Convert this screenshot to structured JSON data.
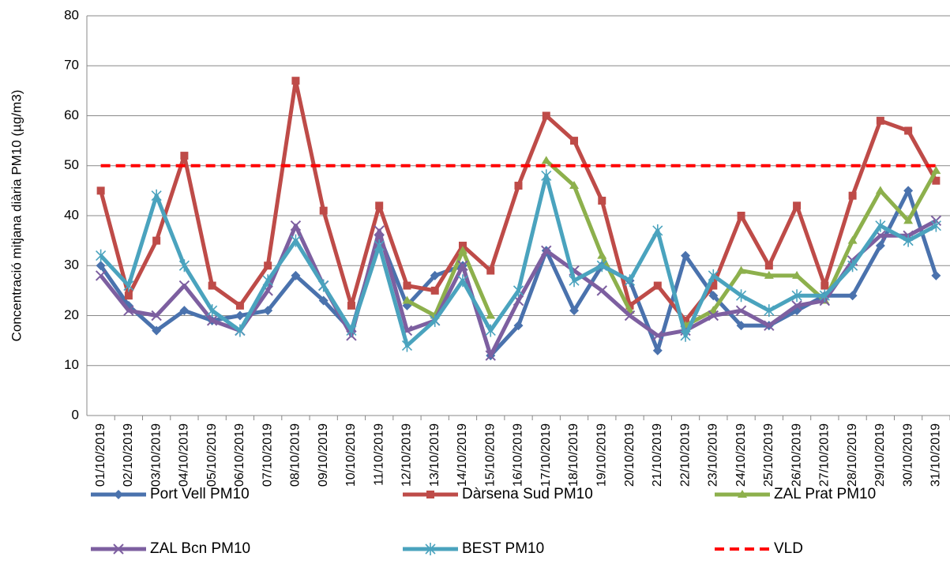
{
  "chart_data": {
    "type": "line",
    "y_label": "Concentració mitjana diària PM10 (µg/m3)",
    "categories": [
      "01/10/2019",
      "02/10/2019",
      "03/10/2019",
      "04/10/2019",
      "05/10/2019",
      "06/10/2019",
      "07/10/2019",
      "08/10/2019",
      "09/10/2019",
      "10/10/2019",
      "11/10/2019",
      "12/10/2019",
      "13/10/2019",
      "14/10/2019",
      "15/10/2019",
      "16/10/2019",
      "17/10/2019",
      "18/10/2019",
      "19/10/2019",
      "20/10/2019",
      "21/10/2019",
      "22/10/2019",
      "23/10/2019",
      "24/10/2019",
      "25/10/2019",
      "26/10/2019",
      "27/10/2019",
      "28/10/2019",
      "29/10/2019",
      "30/10/2019",
      "31/10/2019"
    ],
    "ylim": [
      0,
      80
    ],
    "yticks": [
      0,
      10,
      20,
      30,
      40,
      50,
      60,
      70,
      80
    ],
    "grid": true,
    "series": [
      {
        "name": "Port Vell PM10",
        "color": "#4a72ad",
        "marker": "diamond",
        "values": [
          30,
          22,
          17,
          21,
          19,
          20,
          21,
          28,
          23,
          17,
          36,
          22,
          28,
          30,
          12,
          18,
          33,
          21,
          30,
          27,
          13,
          32,
          24,
          18,
          18,
          21,
          24,
          24,
          34,
          45,
          28
        ]
      },
      {
        "name": "Dàrsena Sud PM10",
        "color": "#be4b48",
        "marker": "square",
        "values": [
          45,
          24,
          35,
          52,
          26,
          22,
          30,
          67,
          41,
          22,
          42,
          26,
          25,
          34,
          29,
          46,
          60,
          55,
          43,
          22,
          26,
          19,
          26,
          40,
          30,
          42,
          26,
          44,
          59,
          57,
          47
        ]
      },
      {
        "name": "ZAL Prat PM10",
        "color": "#8db04c",
        "marker": "triangle",
        "values": [
          null,
          null,
          null,
          null,
          null,
          null,
          null,
          null,
          null,
          null,
          null,
          23,
          20,
          33,
          20,
          null,
          51,
          46,
          32,
          21,
          null,
          18,
          21,
          29,
          28,
          28,
          23,
          35,
          45,
          39,
          49
        ]
      },
      {
        "name": "ZAL Bcn PM10",
        "color": "#7d5fa0",
        "marker": "x",
        "values": [
          28,
          21,
          20,
          26,
          19,
          17,
          25,
          38,
          26,
          16,
          37,
          17,
          19,
          30,
          12,
          23,
          33,
          29,
          25,
          20,
          16,
          17,
          20,
          21,
          18,
          22,
          23,
          31,
          36,
          36,
          39
        ]
      },
      {
        "name": "BEST PM10",
        "color": "#4aa3be",
        "marker": "star",
        "values": [
          32,
          26,
          44,
          30,
          21,
          17,
          27,
          35,
          26,
          17,
          34,
          14,
          19,
          27,
          17,
          25,
          48,
          27,
          30,
          27,
          37,
          16,
          28,
          24,
          21,
          24,
          24,
          30,
          38,
          35,
          38
        ]
      },
      {
        "name": "VLD",
        "color": "#ff0000",
        "marker": "none",
        "dash": true,
        "values": [
          50,
          50,
          50,
          50,
          50,
          50,
          50,
          50,
          50,
          50,
          50,
          50,
          50,
          50,
          50,
          50,
          50,
          50,
          50,
          50,
          50,
          50,
          50,
          50,
          50,
          50,
          50,
          50,
          50,
          50,
          50
        ]
      }
    ]
  }
}
